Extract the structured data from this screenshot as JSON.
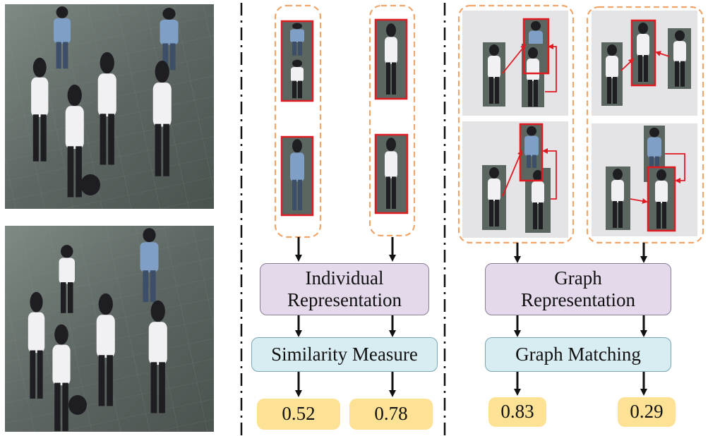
{
  "left_column": {
    "photo_top": "crowd-photo-top",
    "photo_bottom": "crowd-photo-bottom"
  },
  "individual_branch": {
    "representation_line1": "Individual",
    "representation_line2": "Representation",
    "measure_label": "Similarity Measure",
    "scores": [
      "0.52",
      "0.78"
    ]
  },
  "graph_branch": {
    "representation_line1": "Graph",
    "representation_line2": "Representation",
    "matching_label": "Graph Matching",
    "scores": [
      "0.83",
      "0.29"
    ]
  },
  "colors": {
    "highlight_red": "#e01b22",
    "dashed_orange": "#f0a56a",
    "purple_fill": "#e3d9ea",
    "blue_fill": "#d8edf2",
    "score_fill": "#fde295",
    "graph_panel": "#e4e4e6"
  }
}
